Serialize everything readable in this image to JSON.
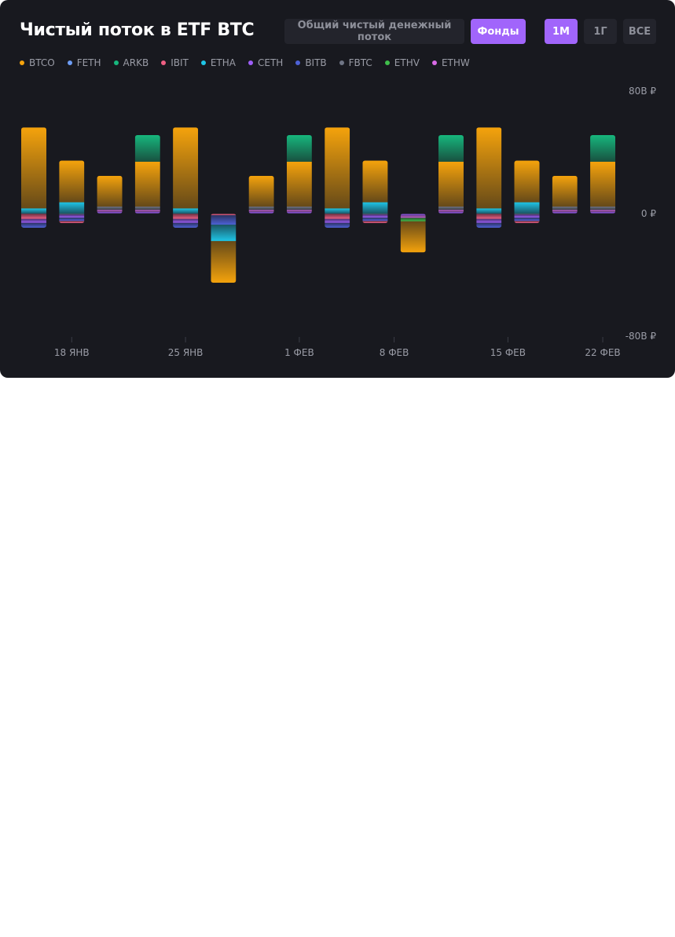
{
  "title": "Чистый поток в ETF BTC",
  "view_toggle": {
    "total_label": "Общий чистый денежный поток",
    "funds_label": "Фонды",
    "active": "funds"
  },
  "range_toggle": {
    "options": [
      "1М",
      "1Г",
      "ВСЕ"
    ],
    "active": "1М"
  },
  "colors": {
    "background": "#18191f",
    "button_bg": "#23242c",
    "accent": "#a165fb",
    "text_muted": "#9a9ca6"
  },
  "chart_data": {
    "type": "bar",
    "stacked": true,
    "currency": "₽",
    "y_ticks": [
      "80B ₽",
      "0 ₽",
      "-80B ₽"
    ],
    "ylim": [
      -80,
      80
    ],
    "x_ticks": [
      {
        "index": 1,
        "label": "18 ЯНВ"
      },
      {
        "index": 4,
        "label": "25 ЯНВ"
      },
      {
        "index": 7,
        "label": "1 ФЕВ"
      },
      {
        "index": 9.5,
        "label": "8 ФЕВ"
      },
      {
        "index": 12.5,
        "label": "15 ФЕВ"
      },
      {
        "index": 15,
        "label": "22 ФЕВ"
      }
    ],
    "legend": [
      {
        "name": "BTCO",
        "color": "#f5a30c"
      },
      {
        "name": "FETH",
        "color": "#6d9df5"
      },
      {
        "name": "ARKB",
        "color": "#17b77d"
      },
      {
        "name": "IBIT",
        "color": "#ef5f83"
      },
      {
        "name": "ETHA",
        "color": "#1fc5e6"
      },
      {
        "name": "CETH",
        "color": "#9e5ef8"
      },
      {
        "name": "BITB",
        "color": "#4d61d6"
      },
      {
        "name": "FBTC",
        "color": "#6f7585"
      },
      {
        "name": "ETHV",
        "color": "#3fbe4b"
      },
      {
        "name": "ETHW",
        "color": "#d86ae6"
      }
    ],
    "bars": [
      {
        "up": [
          [
            "ETHA",
            3.4
          ],
          [
            "BTCO",
            52.9
          ]
        ],
        "down": [
          [
            "IBIT",
            3.4
          ],
          [
            "CETH",
            2.6
          ],
          [
            "BITB",
            3.2
          ]
        ]
      },
      {
        "up": [
          [
            "ETHA",
            7.4
          ],
          [
            "BTCO",
            27.2
          ]
        ],
        "down": [
          [
            "FBTC",
            0.5
          ],
          [
            "CETH",
            2.1
          ],
          [
            "BITB",
            2.1
          ],
          [
            "IBIT",
            1.5
          ]
        ]
      },
      {
        "up": [
          [
            "CETH",
            1.1
          ],
          [
            "ETHW",
            1.3
          ],
          [
            "FBTC",
            2.2
          ],
          [
            "BTCO",
            20.1
          ]
        ],
        "down": []
      },
      {
        "up": [
          [
            "CETH",
            1.1
          ],
          [
            "ETHW",
            1.3
          ],
          [
            "FBTC",
            2.2
          ],
          [
            "BTCO",
            29.3
          ],
          [
            "ARKB",
            17.4
          ]
        ],
        "down": []
      },
      {
        "up": [
          [
            "ETHA",
            3.4
          ],
          [
            "BTCO",
            52.9
          ]
        ],
        "down": [
          [
            "IBIT",
            3.4
          ],
          [
            "CETH",
            2.6
          ],
          [
            "BITB",
            3.2
          ]
        ]
      },
      {
        "up": [],
        "down": [
          [
            "IBIT",
            1.0
          ],
          [
            "BITB",
            6.2
          ],
          [
            "ETHA",
            10.7
          ],
          [
            "BTCO",
            27.2
          ]
        ]
      },
      {
        "up": [
          [
            "CETH",
            1.1
          ],
          [
            "ETHW",
            1.3
          ],
          [
            "FBTC",
            2.2
          ],
          [
            "BTCO",
            20.1
          ]
        ],
        "down": []
      },
      {
        "up": [
          [
            "CETH",
            1.1
          ],
          [
            "ETHW",
            1.3
          ],
          [
            "FBTC",
            2.2
          ],
          [
            "BTCO",
            29.3
          ],
          [
            "ARKB",
            17.4
          ]
        ],
        "down": []
      },
      {
        "up": [
          [
            "ETHA",
            3.4
          ],
          [
            "BTCO",
            52.9
          ]
        ],
        "down": [
          [
            "IBIT",
            3.4
          ],
          [
            "CETH",
            2.6
          ],
          [
            "BITB",
            3.2
          ]
        ]
      },
      {
        "up": [
          [
            "ETHA",
            7.4
          ],
          [
            "BTCO",
            27.2
          ]
        ],
        "down": [
          [
            "FBTC",
            0.5
          ],
          [
            "CETH",
            2.1
          ],
          [
            "BITB",
            2.1
          ],
          [
            "IBIT",
            1.5
          ]
        ]
      },
      {
        "up": [],
        "down": [
          [
            "CETH",
            1.2
          ],
          [
            "ETHW",
            1.5
          ],
          [
            "ETHV",
            2.3
          ],
          [
            "BTCO",
            20.3
          ]
        ]
      },
      {
        "up": [
          [
            "CETH",
            1.1
          ],
          [
            "ETHW",
            1.3
          ],
          [
            "FBTC",
            2.2
          ],
          [
            "BTCO",
            29.3
          ],
          [
            "ARKB",
            17.4
          ]
        ],
        "down": []
      },
      {
        "up": [
          [
            "ETHA",
            3.4
          ],
          [
            "BTCO",
            52.9
          ]
        ],
        "down": [
          [
            "IBIT",
            3.4
          ],
          [
            "CETH",
            2.6
          ],
          [
            "BITB",
            3.2
          ]
        ]
      },
      {
        "up": [
          [
            "ETHA",
            7.4
          ],
          [
            "BTCO",
            27.2
          ]
        ],
        "down": [
          [
            "FBTC",
            0.5
          ],
          [
            "CETH",
            2.1
          ],
          [
            "BITB",
            2.1
          ],
          [
            "IBIT",
            1.5
          ]
        ]
      },
      {
        "up": [
          [
            "CETH",
            1.1
          ],
          [
            "ETHW",
            1.3
          ],
          [
            "FBTC",
            2.2
          ],
          [
            "BTCO",
            20.1
          ]
        ],
        "down": []
      },
      {
        "up": [
          [
            "CETH",
            1.1
          ],
          [
            "ETHW",
            1.3
          ],
          [
            "FBTC",
            2.2
          ],
          [
            "BTCO",
            29.3
          ],
          [
            "ARKB",
            17.4
          ]
        ],
        "down": []
      }
    ]
  }
}
